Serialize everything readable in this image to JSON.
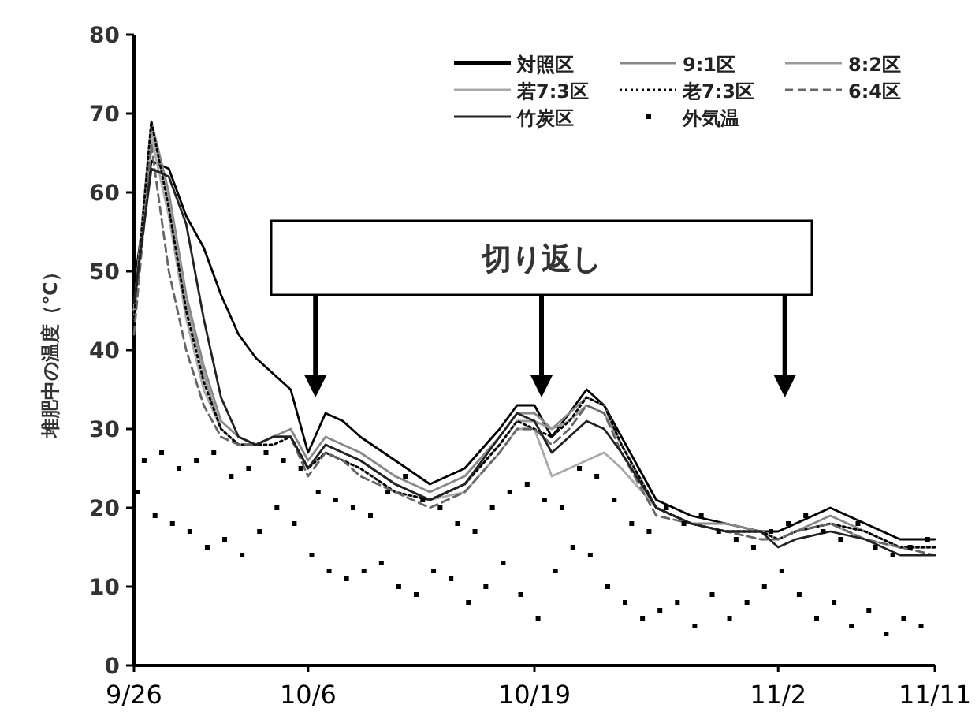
{
  "chart_data": {
    "type": "line",
    "ylabel": "堆肥中の温度（℃）",
    "annotations": [
      "切り返し"
    ],
    "x": [
      "--09-26",
      "--09-27",
      "--09-28",
      "--09-29",
      "--09-30",
      "--10-01",
      "--10-02",
      "--10-03",
      "--10-04",
      "--10-05",
      "--10-06",
      "--10-07",
      "--10-08",
      "--10-09",
      "--10-11",
      "--10-13",
      "--10-15",
      "--10-17",
      "--10-18",
      "--10-19",
      "--10-20",
      "--10-21",
      "--10-22",
      "--10-23",
      "--10-24",
      "--10-26",
      "--10-28",
      "--10-30",
      "--11-01",
      "--11-02",
      "--11-03",
      "--11-05",
      "--11-07",
      "--11-09",
      "--11-11"
    ],
    "series": [
      {
        "name": "対照区",
        "color": "#000000",
        "values": [
          48,
          64,
          63,
          57,
          53,
          47,
          42,
          39,
          37,
          35,
          27,
          32,
          31,
          29,
          26,
          23,
          25,
          30,
          33,
          33,
          29,
          32,
          35,
          33,
          29,
          21,
          19,
          18,
          17,
          17,
          18,
          20,
          18,
          16,
          16
        ]
      },
      {
        "name": "9:1区",
        "color": "#888888",
        "values": [
          45,
          69,
          60,
          47,
          38,
          31,
          29,
          28,
          29,
          30,
          26,
          29,
          28,
          27,
          24,
          22,
          24,
          29,
          32,
          32,
          30,
          32,
          34,
          33,
          28,
          20,
          18,
          18,
          17,
          16,
          17,
          19,
          17,
          15,
          15
        ]
      },
      {
        "name": "8:2区",
        "color": "#999999",
        "values": [
          45,
          68,
          59,
          46,
          37,
          30,
          28,
          28,
          29,
          29,
          25,
          28,
          27,
          26,
          23,
          21,
          23,
          28,
          31,
          31,
          30,
          31,
          33,
          32,
          28,
          20,
          18,
          17,
          17,
          16,
          17,
          18,
          17,
          15,
          15
        ]
      },
      {
        "name": "若7:3区",
        "color": "#aaaaaa",
        "values": [
          44,
          67,
          57,
          44,
          35,
          30,
          28,
          28,
          29,
          29,
          25,
          27,
          26,
          25,
          22,
          21,
          22,
          27,
          30,
          30,
          24,
          25,
          26,
          27,
          25,
          20,
          18,
          17,
          17,
          16,
          17,
          18,
          16,
          15,
          15
        ]
      },
      {
        "name": "老7:3区",
        "color": "#000000",
        "line_style": "dotted",
        "values": [
          44,
          69,
          58,
          45,
          36,
          30,
          28,
          28,
          28,
          29,
          25,
          27,
          26,
          25,
          22,
          21,
          23,
          28,
          31,
          30,
          29,
          31,
          34,
          33,
          28,
          20,
          18,
          17,
          17,
          16,
          17,
          18,
          17,
          15,
          15
        ]
      },
      {
        "name": "6:4区",
        "color": "#666666",
        "line_style": "dashed",
        "values": [
          42,
          66,
          50,
          40,
          33,
          29,
          28,
          28,
          29,
          29,
          24,
          27,
          26,
          24,
          22,
          20,
          22,
          27,
          30,
          30,
          28,
          30,
          33,
          32,
          27,
          19,
          18,
          17,
          16,
          16,
          17,
          18,
          16,
          15,
          14
        ]
      },
      {
        "name": "竹炭区",
        "color": "#222222",
        "values": [
          46,
          63,
          62,
          56,
          44,
          34,
          29,
          28,
          29,
          29,
          25,
          28,
          27,
          26,
          23,
          21,
          23,
          29,
          32,
          31,
          27,
          29,
          31,
          30,
          27,
          20,
          18,
          17,
          17,
          15,
          16,
          17,
          16,
          14,
          14
        ]
      },
      {
        "name": "外気温",
        "color": "#000000",
        "type": "scatter",
        "marker": "square",
        "x": [
          "--09-26T05:00",
          "--09-26T14:00",
          "--09-27T05:00",
          "--09-27T14:00",
          "--09-28T05:00",
          "--09-28T14:00",
          "--09-29T05:00",
          "--09-29T14:00",
          "--09-30T05:00",
          "--09-30T14:00",
          "--10-01T05:00",
          "--10-01T14:00",
          "--10-02T05:00",
          "--10-02T14:00",
          "--10-03T05:00",
          "--10-03T14:00",
          "--10-04T05:00",
          "--10-04T14:00",
          "--10-05T05:00",
          "--10-05T14:00",
          "--10-06T05:00",
          "--10-06T14:00",
          "--10-07T05:00",
          "--10-07T14:00",
          "--10-08T05:00",
          "--10-08T14:00",
          "--10-09T05:00",
          "--10-09T14:00",
          "--10-10T05:00",
          "--10-10T14:00",
          "--10-11T05:00",
          "--10-11T14:00",
          "--10-12T05:00",
          "--10-12T14:00",
          "--10-13T05:00",
          "--10-13T14:00",
          "--10-14T05:00",
          "--10-14T14:00",
          "--10-15T05:00",
          "--10-15T14:00",
          "--10-16T05:00",
          "--10-16T14:00",
          "--10-17T05:00",
          "--10-17T14:00",
          "--10-18T05:00",
          "--10-18T14:00",
          "--10-19T05:00",
          "--10-19T14:00",
          "--10-20T05:00",
          "--10-20T14:00",
          "--10-21T05:00",
          "--10-21T14:00",
          "--10-22T05:00",
          "--10-22T14:00",
          "--10-23T05:00",
          "--10-23T14:00",
          "--10-24T05:00",
          "--10-24T14:00",
          "--10-25T05:00",
          "--10-25T14:00",
          "--10-26T05:00",
          "--10-26T14:00",
          "--10-27T05:00",
          "--10-27T14:00",
          "--10-28T05:00",
          "--10-28T14:00",
          "--10-29T05:00",
          "--10-29T14:00",
          "--10-30T05:00",
          "--10-30T14:00",
          "--10-31T05:00",
          "--10-31T14:00",
          "--11-01T05:00",
          "--11-01T14:00",
          "--11-02T05:00",
          "--11-02T14:00",
          "--11-03T05:00",
          "--11-03T14:00",
          "--11-04T05:00",
          "--11-04T14:00",
          "--11-05T05:00",
          "--11-05T14:00",
          "--11-06T05:00",
          "--11-06T14:00",
          "--11-07T05:00",
          "--11-07T14:00",
          "--11-08T05:00",
          "--11-08T14:00",
          "--11-09T05:00",
          "--11-09T14:00",
          "--11-10T05:00",
          "--11-10T14:00"
        ],
        "values": [
          22,
          26,
          19,
          27,
          18,
          25,
          17,
          26,
          15,
          27,
          16,
          24,
          14,
          25,
          17,
          27,
          20,
          26,
          18,
          25,
          14,
          22,
          12,
          21,
          11,
          20,
          12,
          19,
          13,
          22,
          10,
          24,
          9,
          21,
          12,
          20,
          11,
          18,
          8,
          17,
          10,
          20,
          13,
          22,
          9,
          23,
          6,
          21,
          12,
          20,
          15,
          25,
          14,
          24,
          10,
          21,
          8,
          18,
          6,
          17,
          7,
          20,
          8,
          18,
          5,
          19,
          9,
          17,
          6,
          16,
          8,
          15,
          10,
          17,
          12,
          18,
          9,
          19,
          6,
          17,
          8,
          16,
          5,
          18,
          7,
          15,
          4,
          14,
          6,
          15,
          5,
          16
        ]
      }
    ],
    "ylim": [
      0,
      80
    ],
    "yticks": [
      0,
      10,
      20,
      30,
      40,
      50,
      60,
      70,
      80
    ],
    "xlim": [
      "--09-26",
      "--11-11"
    ],
    "xticks": [
      {
        "value": "--09-26",
        "label": "9/26"
      },
      {
        "value": "--10-06",
        "label": "10/6"
      },
      {
        "value": "--10-19",
        "label": "10/19"
      },
      {
        "value": "--11-02",
        "label": "11/2"
      },
      {
        "value": "--11-11",
        "label": "11/11"
      }
    ],
    "grid": false,
    "legend": "top right",
    "marker": "none",
    "line_style": "solid"
  }
}
